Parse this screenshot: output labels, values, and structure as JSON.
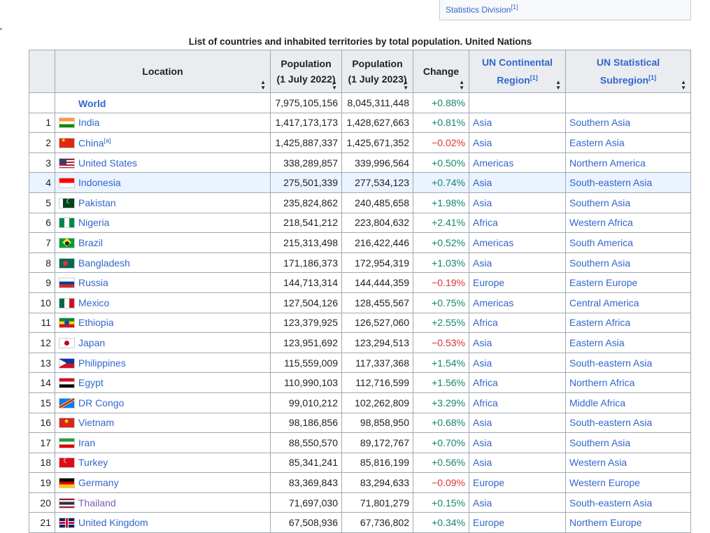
{
  "infobox": {
    "text": "Statistics Division",
    "sup": "[1]"
  },
  "caption": "List of countries and inhabited territories by total population. United Nations",
  "columns": {
    "location": "Location",
    "pop2022_line1": "Population",
    "pop2022_line2": "(1 July 2022)",
    "pop2023_line1": "Population",
    "pop2023_line2": "(1 July 2023)",
    "change": "Change",
    "region_line1": "UN Continental",
    "region_line2": "Region",
    "region_sup": "[1]",
    "subregion_line1": "UN Statistical",
    "subregion_line2": "Subregion",
    "subregion_sup": "[1]"
  },
  "world": {
    "name": "World",
    "pop2022": "7,975,105,156",
    "pop2023": "8,045,311,448",
    "change": "+0.88%"
  },
  "rows": [
    {
      "rank": "1",
      "name": "India",
      "flag": "in",
      "pop2022": "1,417,173,173",
      "pop2023": "1,428,627,663",
      "change": "+0.81%",
      "region": "Asia",
      "subregion": "Southern Asia"
    },
    {
      "rank": "2",
      "name": "China",
      "note": "[a]",
      "flag": "cn",
      "pop2022": "1,425,887,337",
      "pop2023": "1,425,671,352",
      "change": "−0.02%",
      "region": "Asia",
      "subregion": "Eastern Asia"
    },
    {
      "rank": "3",
      "name": "United States",
      "flag": "us",
      "pop2022": "338,289,857",
      "pop2023": "339,996,564",
      "change": "+0.50%",
      "region": "Americas",
      "subregion": "Northern America"
    },
    {
      "rank": "4",
      "name": "Indonesia",
      "flag": "id",
      "pop2022": "275,501,339",
      "pop2023": "277,534,123",
      "change": "+0.74%",
      "region": "Asia",
      "subregion": "South-eastern Asia"
    },
    {
      "rank": "5",
      "name": "Pakistan",
      "flag": "pk",
      "pop2022": "235,824,862",
      "pop2023": "240,485,658",
      "change": "+1.98%",
      "region": "Asia",
      "subregion": "Southern Asia"
    },
    {
      "rank": "6",
      "name": "Nigeria",
      "flag": "ng",
      "pop2022": "218,541,212",
      "pop2023": "223,804,632",
      "change": "+2.41%",
      "region": "Africa",
      "subregion": "Western Africa"
    },
    {
      "rank": "7",
      "name": "Brazil",
      "flag": "br",
      "pop2022": "215,313,498",
      "pop2023": "216,422,446",
      "change": "+0.52%",
      "region": "Americas",
      "subregion": "South America"
    },
    {
      "rank": "8",
      "name": "Bangladesh",
      "flag": "bd",
      "pop2022": "171,186,373",
      "pop2023": "172,954,319",
      "change": "+1.03%",
      "region": "Asia",
      "subregion": "Southern Asia"
    },
    {
      "rank": "9",
      "name": "Russia",
      "flag": "ru",
      "pop2022": "144,713,314",
      "pop2023": "144,444,359",
      "change": "−0.19%",
      "region": "Europe",
      "subregion": "Eastern Europe"
    },
    {
      "rank": "10",
      "name": "Mexico",
      "flag": "mx",
      "pop2022": "127,504,126",
      "pop2023": "128,455,567",
      "change": "+0.75%",
      "region": "Americas",
      "subregion": "Central America"
    },
    {
      "rank": "11",
      "name": "Ethiopia",
      "flag": "et",
      "pop2022": "123,379,925",
      "pop2023": "126,527,060",
      "change": "+2.55%",
      "region": "Africa",
      "subregion": "Eastern Africa"
    },
    {
      "rank": "12",
      "name": "Japan",
      "flag": "jp",
      "pop2022": "123,951,692",
      "pop2023": "123,294,513",
      "change": "−0.53%",
      "region": "Asia",
      "subregion": "Eastern Asia"
    },
    {
      "rank": "13",
      "name": "Philippines",
      "flag": "ph",
      "pop2022": "115,559,009",
      "pop2023": "117,337,368",
      "change": "+1.54%",
      "region": "Asia",
      "subregion": "South-eastern Asia"
    },
    {
      "rank": "14",
      "name": "Egypt",
      "flag": "eg",
      "pop2022": "110,990,103",
      "pop2023": "112,716,599",
      "change": "+1.56%",
      "region": "Africa",
      "subregion": "Northern Africa"
    },
    {
      "rank": "15",
      "name": "DR Congo",
      "flag": "cd",
      "pop2022": "99,010,212",
      "pop2023": "102,262,809",
      "change": "+3.29%",
      "region": "Africa",
      "subregion": "Middle Africa"
    },
    {
      "rank": "16",
      "name": "Vietnam",
      "flag": "vn",
      "pop2022": "98,186,856",
      "pop2023": "98,858,950",
      "change": "+0.68%",
      "region": "Asia",
      "subregion": "South-eastern Asia"
    },
    {
      "rank": "17",
      "name": "Iran",
      "flag": "ir",
      "pop2022": "88,550,570",
      "pop2023": "89,172,767",
      "change": "+0.70%",
      "region": "Asia",
      "subregion": "Southern Asia"
    },
    {
      "rank": "18",
      "name": "Turkey",
      "flag": "tr",
      "pop2022": "85,341,241",
      "pop2023": "85,816,199",
      "change": "+0.56%",
      "region": "Asia",
      "subregion": "Western Asia"
    },
    {
      "rank": "19",
      "name": "Germany",
      "flag": "de",
      "pop2022": "83,369,843",
      "pop2023": "83,294,633",
      "change": "−0.09%",
      "region": "Europe",
      "subregion": "Western Europe"
    },
    {
      "rank": "20",
      "name": "Thailand",
      "flag": "th",
      "visited": true,
      "pop2022": "71,697,030",
      "pop2023": "71,801,279",
      "change": "+0.15%",
      "region": "Asia",
      "subregion": "South-eastern Asia"
    },
    {
      "rank": "21",
      "name": "United Kingdom",
      "flag": "gb",
      "pop2022": "67,508,936",
      "pop2023": "67,736,802",
      "change": "+0.34%",
      "region": "Europe",
      "subregion": "Northern Europe"
    }
  ],
  "highlighted_row_rank": "4",
  "colors": {
    "link": "#3366cc",
    "visited_link": "#795cb2",
    "positive": "#14866d",
    "negative": "#dd3333",
    "header_bg": "#eaecf0",
    "row_highlight": "#eaf3ff"
  },
  "icons": {
    "sort": "sort-arrows-icon"
  }
}
